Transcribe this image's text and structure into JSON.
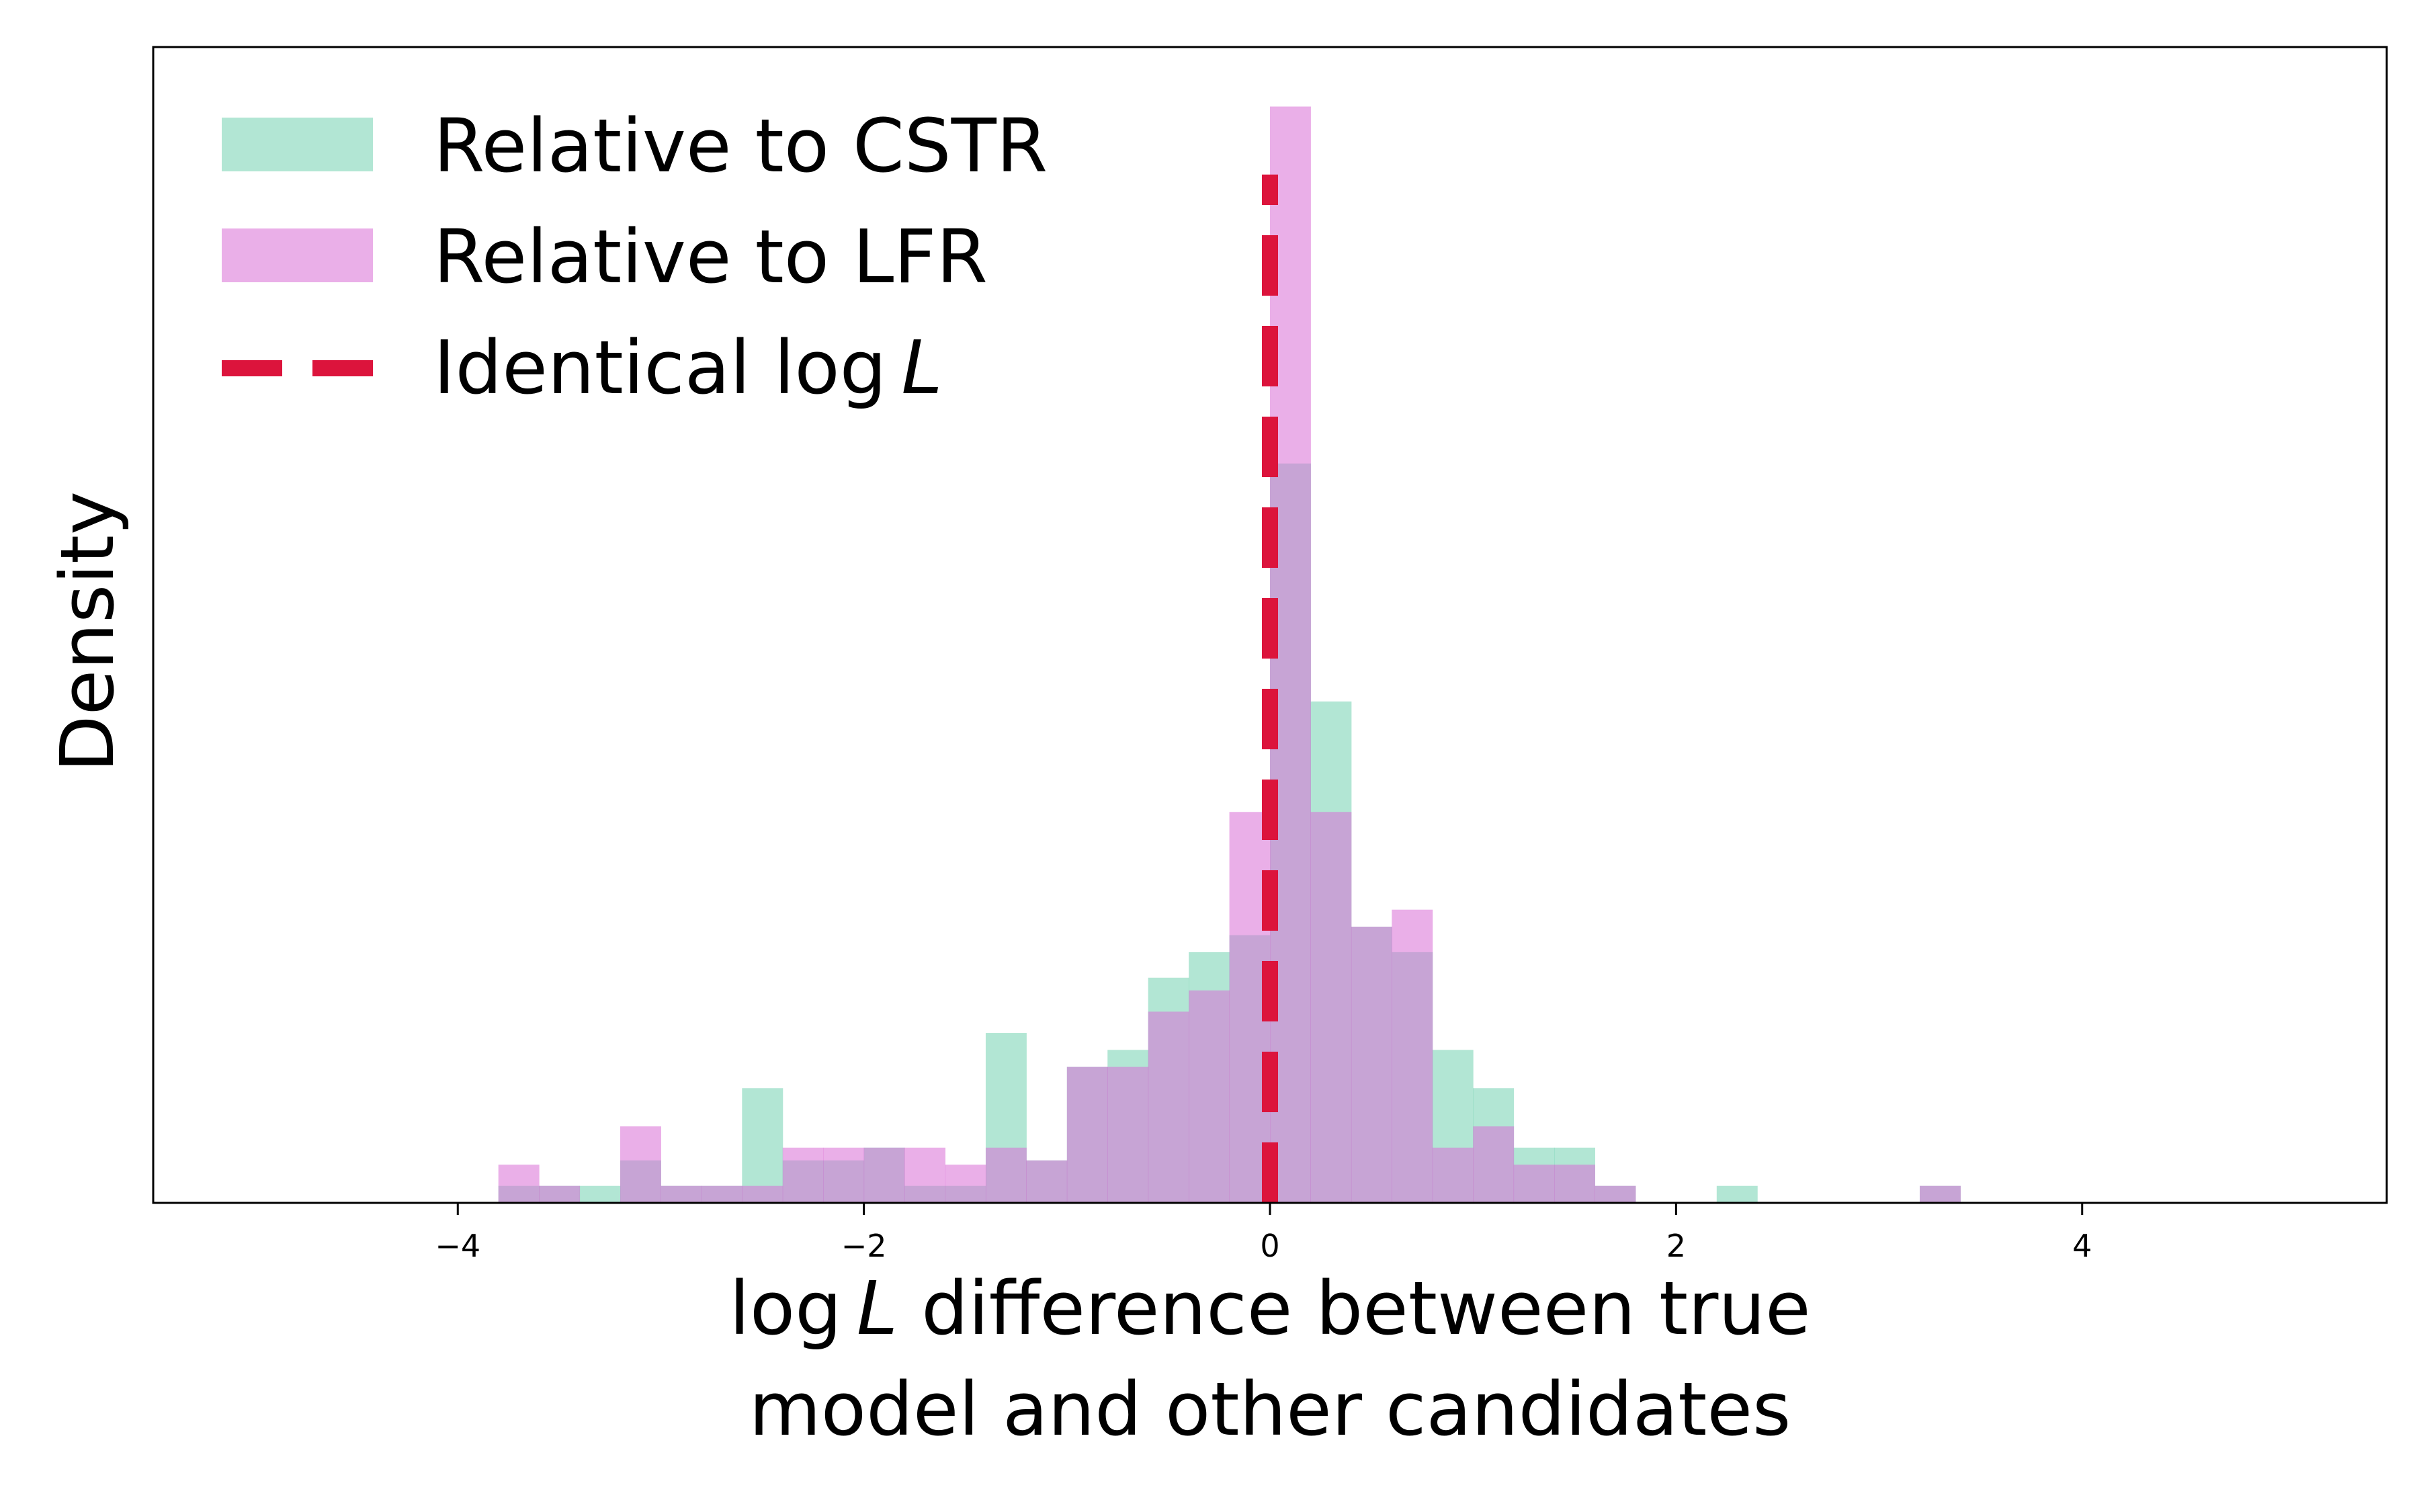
{
  "chart_data": {
    "type": "histogram",
    "xlabel_line1": "log L difference between true",
    "xlabel_line2": "model and other candidates",
    "ylabel": "Density",
    "xlim": [
      -5.5,
      5.5
    ],
    "ylim": [
      0,
      27.2
    ],
    "xticks": [
      -4,
      -2,
      0,
      2,
      4
    ],
    "xtick_labels": [
      "−4",
      "−2",
      "0",
      "2",
      "4"
    ],
    "yticks_shown": false,
    "bin_width": 0.2,
    "legend_position": "upper-left",
    "series": [
      {
        "name": "Relative to CSTR",
        "color": "#66CDAA",
        "alpha": 0.5,
        "bins": [
          [
            -3.8,
            0.4
          ],
          [
            -3.6,
            0.4
          ],
          [
            -3.4,
            0.4
          ],
          [
            -3.2,
            1
          ],
          [
            -3.0,
            0.4
          ],
          [
            -2.8,
            0.4
          ],
          [
            -2.6,
            2.7
          ],
          [
            -2.4,
            1
          ],
          [
            -2.2,
            1
          ],
          [
            -2.0,
            1.3
          ],
          [
            -1.8,
            0.4
          ],
          [
            -1.6,
            0.4
          ],
          [
            -1.4,
            4
          ],
          [
            -1.2,
            1
          ],
          [
            -1.0,
            3.2
          ],
          [
            -0.8,
            3.6
          ],
          [
            -0.6,
            5.3
          ],
          [
            -0.4,
            5.9
          ],
          [
            -0.2,
            6.3
          ],
          [
            0.0,
            17.4
          ],
          [
            0.2,
            11.8
          ],
          [
            0.4,
            6.5
          ],
          [
            0.6,
            5.9
          ],
          [
            0.8,
            3.6
          ],
          [
            1.0,
            2.7
          ],
          [
            1.2,
            1.3
          ],
          [
            1.4,
            1.3
          ],
          [
            1.6,
            0.4
          ],
          [
            2.2,
            0.4
          ],
          [
            3.2,
            0.4
          ]
        ]
      },
      {
        "name": "Relative to LFR",
        "color": "#D86ED6",
        "alpha": 0.55,
        "bins": [
          [
            -3.8,
            0.9
          ],
          [
            -3.6,
            0.4
          ],
          [
            -3.2,
            1.8
          ],
          [
            -3.0,
            0.4
          ],
          [
            -2.8,
            0.4
          ],
          [
            -2.6,
            0.4
          ],
          [
            -2.4,
            1.3
          ],
          [
            -2.2,
            1.3
          ],
          [
            -2.0,
            1.3
          ],
          [
            -1.8,
            1.3
          ],
          [
            -1.6,
            0.9
          ],
          [
            -1.4,
            1.3
          ],
          [
            -1.2,
            1
          ],
          [
            -1.0,
            3.2
          ],
          [
            -0.8,
            3.2
          ],
          [
            -0.6,
            4.5
          ],
          [
            -0.4,
            5
          ],
          [
            -0.2,
            9.2
          ],
          [
            0.0,
            25.8
          ],
          [
            0.2,
            9.2
          ],
          [
            0.4,
            6.5
          ],
          [
            0.6,
            6.9
          ],
          [
            0.8,
            1.3
          ],
          [
            1.0,
            1.8
          ],
          [
            1.2,
            0.9
          ],
          [
            1.4,
            0.9
          ],
          [
            1.6,
            0.4
          ],
          [
            3.2,
            0.4
          ]
        ]
      }
    ],
    "reference_line": {
      "name": "Identical log L",
      "x": 0,
      "color": "#DC143C",
      "style": "dashed"
    }
  },
  "legend": {
    "items": [
      {
        "label": "Relative to CSTR",
        "color": "#66CDAA"
      },
      {
        "label": "Relative to LFR",
        "color": "#D86ED6"
      },
      {
        "label_prefix": "Identical log ",
        "label_italic": "L",
        "color": "#DC143C"
      }
    ]
  },
  "axis_titles": {
    "x_line1_prefix": "log ",
    "x_line1_italic": "L",
    "x_line1_suffix": " difference between true",
    "x_line2": "model and other candidates",
    "y": "Density"
  }
}
